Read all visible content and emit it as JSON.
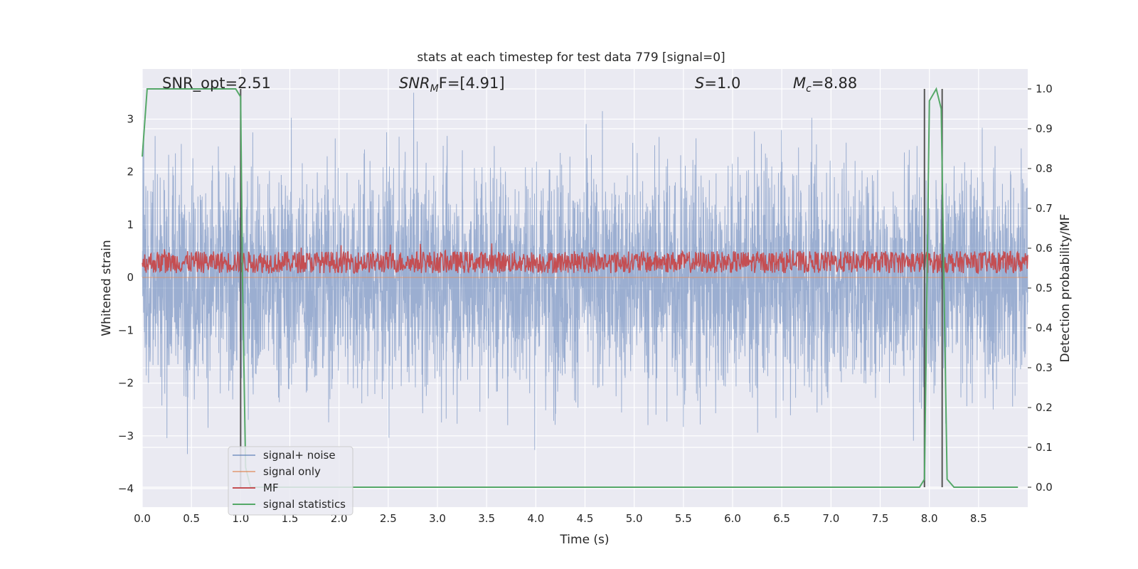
{
  "chart_data": {
    "type": "line",
    "title": "stats at each timestep for test data 779 [signal=0]",
    "xlabel": "Time (s)",
    "ylabel_left": "Whitened strain",
    "ylabel_right": "Detection probability/MF",
    "xlim": [
      0.0,
      9.0
    ],
    "ylim_left": [
      -4.35,
      3.95
    ],
    "ylim_right": [
      -0.05,
      1.05
    ],
    "x_ticks": [
      "0.0",
      "0.5",
      "1.0",
      "1.5",
      "2.0",
      "2.5",
      "3.0",
      "3.5",
      "4.0",
      "4.5",
      "5.0",
      "5.5",
      "6.0",
      "6.5",
      "7.0",
      "7.5",
      "8.0",
      "8.5"
    ],
    "y_ticks_left": [
      "3",
      "2",
      "1",
      "0",
      "−1",
      "−2",
      "−3",
      "−4"
    ],
    "y_ticks_right": [
      "1.0",
      "0.9",
      "0.8",
      "0.7",
      "0.6",
      "0.5",
      "0.4",
      "0.3",
      "0.2",
      "0.1",
      "0.0"
    ],
    "grid": true,
    "background": "#eaeaf2",
    "annotations": {
      "snr_opt": "SNR_opt=2.51",
      "snr_mf_prefix": "SNR",
      "snr_mf_sub": "M",
      "snr_mf_suffix": "F=[4.91]",
      "s_label": "S",
      "s_value": "=1.0",
      "mc_label": "M",
      "mc_sub": "c",
      "mc_value": "=8.88"
    },
    "legend": {
      "placement": "lower-left",
      "entries": [
        "signal+ noise",
        "signal only",
        "MF",
        "signal statistics"
      ]
    },
    "colors": {
      "noise": "#4c72b0",
      "signal_only": "#dd8452",
      "mf": "#c44e52",
      "stat": "#55a868",
      "vline": "#555555"
    },
    "series": [
      {
        "name": "signal statistics",
        "axis": "right",
        "x": [
          0.0,
          0.05,
          0.1,
          0.5,
          0.95,
          1.0,
          1.02,
          1.05,
          1.1,
          1.15,
          1.2,
          7.8,
          7.9,
          7.95,
          8.0,
          8.07,
          8.12,
          8.18,
          8.25,
          8.9
        ],
        "y": [
          0.83,
          1.0,
          1.0,
          1.0,
          1.0,
          0.98,
          0.5,
          0.05,
          0.0,
          0.0,
          0.0,
          0.0,
          0.0,
          0.02,
          0.97,
          1.0,
          0.95,
          0.02,
          0.0,
          0.0
        ]
      },
      {
        "name": "signal+ noise",
        "axis": "left",
        "description_values": {
          "std": 1.05,
          "max": 3.5,
          "min": -4.0
        }
      },
      {
        "name": "MF",
        "axis": "right",
        "description_values": {
          "mean": 0.565,
          "range": [
            0.53,
            0.65
          ]
        }
      },
      {
        "name": "signal only",
        "axis": "left",
        "description_values": {
          "value": 0.0
        }
      }
    ],
    "vlines": [
      1.0,
      7.95,
      8.13
    ]
  }
}
